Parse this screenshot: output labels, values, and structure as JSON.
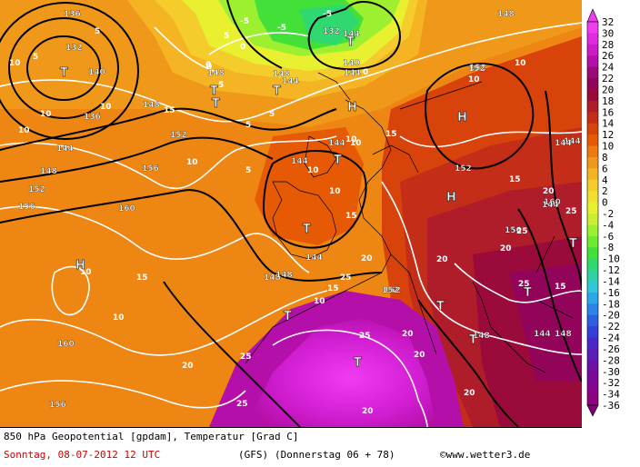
{
  "colorbar": {
    "labels": [
      "32",
      "30",
      "28",
      "26",
      "24",
      "22",
      "20",
      "18",
      "16",
      "14",
      "12",
      "10",
      "8",
      "6",
      "4",
      "2",
      "0",
      "-2",
      "-4",
      "-6",
      "-8",
      "-10",
      "-12",
      "-14",
      "-16",
      "-18",
      "-20",
      "-22",
      "-24",
      "-26",
      "-28",
      "-30",
      "-32",
      "-34",
      "-36"
    ],
    "colors": [
      "#f03cf0",
      "#e02ae0",
      "#cc1cc8",
      "#b40fa8",
      "#9c0a7a",
      "#92045a",
      "#9a0a3a",
      "#b01d2a",
      "#c42d18",
      "#d8430c",
      "#e65a06",
      "#ee7a10",
      "#f0981a",
      "#f4b424",
      "#f4cc2c",
      "#f0e030",
      "#e8f030",
      "#c8f030",
      "#9cf030",
      "#70ea30",
      "#44e03a",
      "#30d870",
      "#30d0a4",
      "#30c8d8",
      "#2aa8e8",
      "#2c84e8",
      "#2c60e0",
      "#3640d8",
      "#4a28c8",
      "#5c1cb8",
      "#6c10a8",
      "#7c0898",
      "#88048c",
      "#900080",
      "#80007a"
    ]
  },
  "map": {
    "geopotential_labels": [
      "136",
      "132",
      "140",
      "144",
      "148",
      "152",
      "156",
      "160",
      "136",
      "132",
      "140",
      "144",
      "148",
      "152",
      "156",
      "148",
      "152",
      "144",
      "148",
      "152",
      "156",
      "160",
      "144",
      "148",
      "152",
      "160",
      "156",
      "144",
      "148",
      "152",
      "144",
      "144",
      "144",
      "148",
      "152",
      "144",
      "148",
      "144",
      "144",
      "148"
    ],
    "temperature_labels": [
      "5",
      "5",
      "10",
      "15",
      "10",
      "15",
      "20",
      "25",
      "-5",
      "-5",
      "-5",
      "0",
      "5",
      "5",
      "10",
      "5",
      "10",
      "10",
      "15",
      "10",
      "10",
      "15",
      "20",
      "20",
      "25",
      "20",
      "25",
      "20",
      "20",
      "25",
      "10",
      "10",
      "15",
      "20",
      "25",
      "15",
      "20",
      "25",
      "10",
      "10",
      "10",
      "5",
      "0",
      "5",
      "10",
      "15",
      "10",
      "25",
      "20",
      "0",
      "0"
    ],
    "pressure_centers": [
      "T",
      "T",
      "T",
      "T",
      "T",
      "T",
      "T",
      "T",
      "T",
      "T",
      "T",
      "T",
      "T",
      "H",
      "H",
      "H",
      "H"
    ]
  },
  "footer": {
    "line1": "850 hPa Geopotential [gpdam], Temperatur [Grad C]",
    "date": "Sonntag, 08-07-2012  12 UTC",
    "model": "(GFS)",
    "forecast": "(Donnerstag 06 + 78)",
    "copyright": "©www.wetter3.de"
  }
}
